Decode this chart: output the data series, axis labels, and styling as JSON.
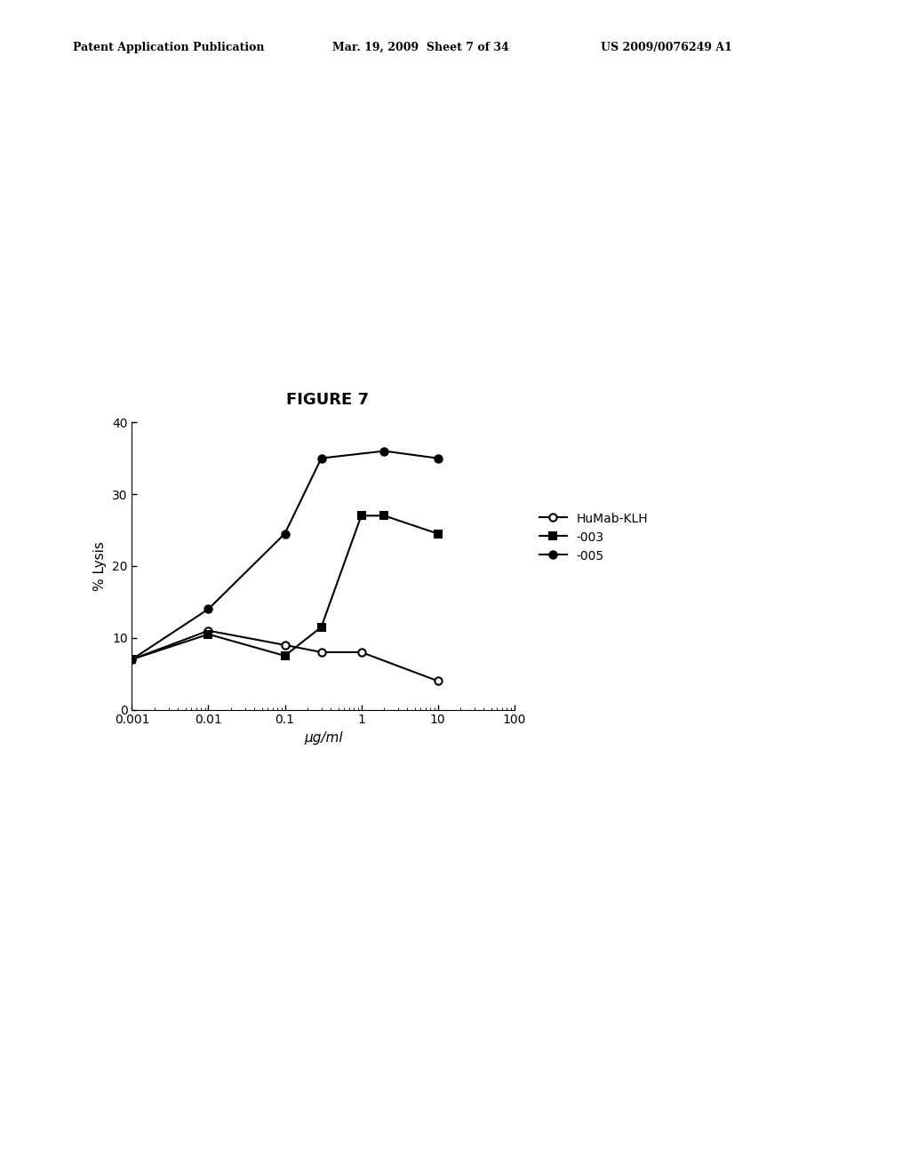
{
  "title": "FIGURE 7",
  "xlabel": "μg/ml",
  "ylabel": "% Lysis",
  "ylim": [
    0,
    40
  ],
  "yticks": [
    0,
    10,
    20,
    30,
    40
  ],
  "xtick_labels": [
    "0.001",
    "0.01",
    "0.1",
    "1",
    "10",
    "100"
  ],
  "xtick_values": [
    0.001,
    0.01,
    0.1,
    1,
    10,
    100
  ],
  "series": [
    {
      "label": "HuMab-KLH",
      "x": [
        0.001,
        0.01,
        0.1,
        0.3,
        1,
        10
      ],
      "y": [
        7.0,
        11.0,
        9.0,
        8.0,
        8.0,
        4.0
      ],
      "marker": "o",
      "marker_fill": "white",
      "marker_edge": "black",
      "line_color": "black",
      "line_style": "-"
    },
    {
      "label": "-003",
      "x": [
        0.001,
        0.01,
        0.1,
        0.3,
        1,
        2,
        10
      ],
      "y": [
        7.0,
        10.5,
        7.5,
        11.5,
        27.0,
        27.0,
        24.5
      ],
      "marker": "s",
      "marker_fill": "black",
      "marker_edge": "black",
      "line_color": "black",
      "line_style": "-"
    },
    {
      "label": "-005",
      "x": [
        0.001,
        0.01,
        0.1,
        0.3,
        2,
        10
      ],
      "y": [
        7.0,
        14.0,
        24.5,
        35.0,
        36.0,
        35.0
      ],
      "marker": "o",
      "marker_fill": "black",
      "marker_edge": "black",
      "line_color": "black",
      "line_style": "-"
    }
  ],
  "header_left": "Patent Application Publication",
  "header_mid": "Mar. 19, 2009  Sheet 7 of 34",
  "header_right": "US 2009/0076249 A1",
  "background_color": "white",
  "figure_size": [
    10.24,
    13.2
  ],
  "dpi": 100
}
